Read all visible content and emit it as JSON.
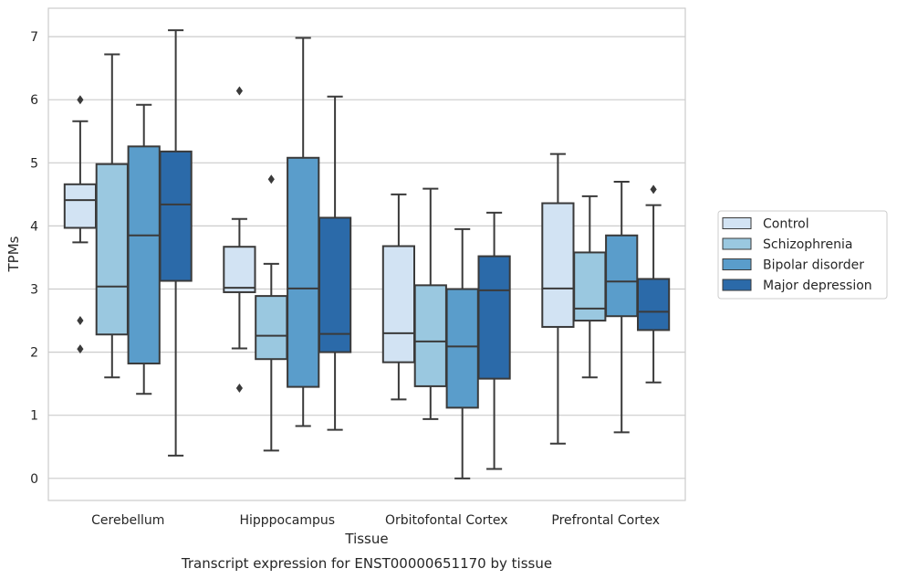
{
  "caption": "Transcript expression for ENST00000651170 by tissue",
  "chart_data": {
    "type": "boxplot",
    "xlabel": "Tissue",
    "ylabel": "TPMs",
    "ylim": [
      -0.35,
      7.45
    ],
    "yticks": [
      0,
      1,
      2,
      3,
      4,
      5,
      6,
      7
    ],
    "grid": "horizontal",
    "legend_position": "right",
    "categories": [
      "Cerebellum",
      "Hipppocampus",
      "Orbitofontal Cortex",
      "Prefrontal Cortex"
    ],
    "series": [
      {
        "name": "Control",
        "color": "#d2e3f3",
        "boxes": [
          {
            "whislo": 3.74,
            "q1": 3.97,
            "med": 4.41,
            "q3": 4.66,
            "whishi": 5.66,
            "fliers": [
              6.0,
              2.5,
              2.05
            ]
          },
          {
            "whislo": 2.06,
            "q1": 2.95,
            "med": 3.02,
            "q3": 3.67,
            "whishi": 4.11,
            "fliers": [
              6.14,
              1.43
            ]
          },
          {
            "whislo": 1.25,
            "q1": 1.84,
            "med": 2.3,
            "q3": 3.68,
            "whishi": 4.5,
            "fliers": []
          },
          {
            "whislo": 0.55,
            "q1": 2.4,
            "med": 3.01,
            "q3": 4.36,
            "whishi": 5.14,
            "fliers": []
          }
        ]
      },
      {
        "name": "Schizophrenia",
        "color": "#9ac8e0",
        "boxes": [
          {
            "whislo": 1.6,
            "q1": 2.28,
            "med": 3.04,
            "q3": 4.98,
            "whishi": 6.72,
            "fliers": []
          },
          {
            "whislo": 0.44,
            "q1": 1.89,
            "med": 2.26,
            "q3": 2.89,
            "whishi": 3.4,
            "fliers": [
              4.74
            ]
          },
          {
            "whislo": 0.94,
            "q1": 1.46,
            "med": 2.17,
            "q3": 3.06,
            "whishi": 4.59,
            "fliers": []
          },
          {
            "whislo": 1.6,
            "q1": 2.5,
            "med": 2.69,
            "q3": 3.58,
            "whishi": 4.47,
            "fliers": []
          }
        ]
      },
      {
        "name": "Bipolar disorder",
        "color": "#5a9dcb",
        "boxes": [
          {
            "whislo": 1.34,
            "q1": 1.82,
            "med": 3.85,
            "q3": 5.26,
            "whishi": 5.92,
            "fliers": []
          },
          {
            "whislo": 0.83,
            "q1": 1.45,
            "med": 3.01,
            "q3": 5.08,
            "whishi": 6.98,
            "fliers": []
          },
          {
            "whislo": 0.0,
            "q1": 1.12,
            "med": 2.09,
            "q3": 3.0,
            "whishi": 3.95,
            "fliers": []
          },
          {
            "whislo": 0.73,
            "q1": 2.57,
            "med": 3.12,
            "q3": 3.85,
            "whishi": 4.7,
            "fliers": []
          }
        ]
      },
      {
        "name": "Major depression",
        "color": "#2b6aa9",
        "boxes": [
          {
            "whislo": 0.36,
            "q1": 3.13,
            "med": 4.34,
            "q3": 5.18,
            "whishi": 7.1,
            "fliers": []
          },
          {
            "whislo": 0.77,
            "q1": 2.0,
            "med": 2.29,
            "q3": 4.13,
            "whishi": 6.05,
            "fliers": []
          },
          {
            "whislo": 0.15,
            "q1": 1.58,
            "med": 2.98,
            "q3": 3.52,
            "whishi": 4.21,
            "fliers": []
          },
          {
            "whislo": 1.52,
            "q1": 2.35,
            "med": 2.64,
            "q3": 3.16,
            "whishi": 4.33,
            "fliers": [
              4.58
            ]
          }
        ]
      }
    ]
  }
}
